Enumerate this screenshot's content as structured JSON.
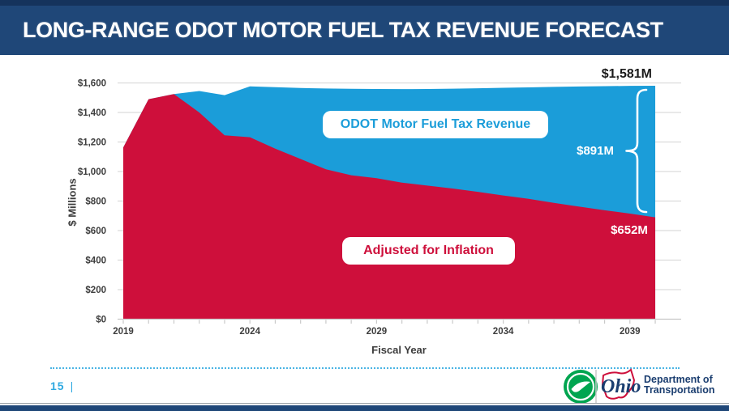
{
  "slide": {
    "title": "LONG-RANGE ODOT MOTOR FUEL TAX REVENUE FORECAST",
    "page_number": "15",
    "page_separator": "|"
  },
  "footer": {
    "logo": {
      "odot_circle_icon": "odot-swoosh-icon",
      "state_script": "Ohio",
      "agency_line1": "Department of",
      "agency_line2": "Transportation"
    }
  },
  "colors": {
    "header_navy": "#1f4778",
    "top_strip_navy": "#15335c",
    "revenue_blue": "#1b9dd9",
    "inflation_red": "#ce0f3b",
    "axis_text_gray": "#3d3d3d",
    "gridline_gray": "#dcdcdc",
    "footer_blue": "#2fa9e1",
    "logo_green": "#00a550",
    "dept_navy": "#1b3e70"
  },
  "chart_data": {
    "type": "area",
    "title": "",
    "xlabel": "Fiscal Year",
    "ylabel": "$ Millions",
    "ylim": [
      0,
      1600
    ],
    "grid": "horizontal",
    "legend_position": "in-plot labels",
    "x": [
      2019,
      2020,
      2021,
      2022,
      2023,
      2024,
      2025,
      2026,
      2027,
      2028,
      2029,
      2030,
      2031,
      2032,
      2033,
      2034,
      2035,
      2036,
      2037,
      2038,
      2039,
      2040
    ],
    "x_tick_labels": [
      "2019",
      "2024",
      "2029",
      "2034",
      "2039"
    ],
    "y_tick_labels": [
      "$0",
      "$200",
      "$400",
      "$600",
      "$800",
      "$1,000",
      "$1,200",
      "$1,400",
      "$1,600"
    ],
    "series": [
      {
        "name": "ODOT Motor Fuel Tax Revenue",
        "color": "#1b9dd9",
        "values": [
          1163,
          1490,
          1525,
          1545,
          1517,
          1577,
          1571,
          1566,
          1562,
          1560,
          1559,
          1558,
          1559,
          1561,
          1564,
          1567,
          1570,
          1573,
          1576,
          1578,
          1580,
          1581
        ]
      },
      {
        "name": "Adjusted for Inflation",
        "color": "#ce0f3b",
        "values": [
          1163,
          1490,
          1525,
          1400,
          1245,
          1232,
          1155,
          1085,
          1015,
          975,
          955,
          925,
          905,
          885,
          862,
          838,
          815,
          788,
          762,
          738,
          715,
          690
        ]
      }
    ],
    "annotations": [
      {
        "text": "$1,581M"
      },
      {
        "text": "$891M"
      },
      {
        "text": "$652M"
      }
    ]
  }
}
